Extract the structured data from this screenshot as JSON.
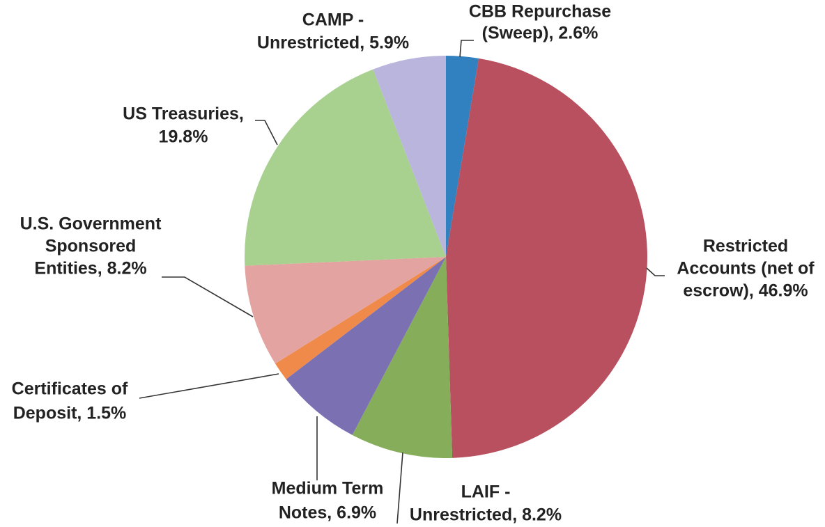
{
  "chart_data": {
    "type": "pie",
    "labels": [
      [
        "CBB Repurchase",
        "(Sweep), 2.6%"
      ],
      [
        "Restricted",
        "Accounts (net of",
        "escrow), 46.9%"
      ],
      [
        "LAIF -",
        "Unrestricted, 8.2%"
      ],
      [
        "Medium Term",
        "Notes, 6.9%"
      ],
      [
        "Certificates of",
        "Deposit, 1.5%"
      ],
      [
        "U.S. Government",
        "Sponsored",
        "Entities, 8.2%"
      ],
      [
        "US Treasuries,",
        "19.8%"
      ],
      [
        "CAMP -",
        "Unrestricted, 5.9%"
      ]
    ],
    "values": [
      2.6,
      46.9,
      8.2,
      6.9,
      1.5,
      8.2,
      19.8,
      5.9
    ],
    "colors": [
      "#3180c0",
      "#b8505f",
      "#86ad5a",
      "#7b70b2",
      "#f08a4b",
      "#e3a4a1",
      "#a8d08f",
      "#b9b5dd"
    ]
  }
}
